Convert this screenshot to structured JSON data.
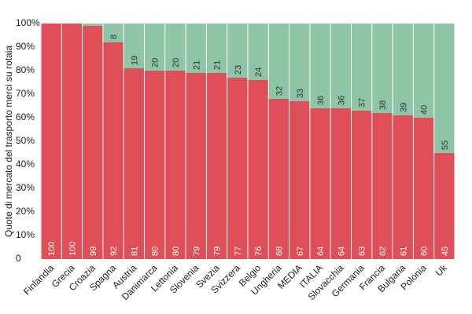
{
  "chart_data": {
    "type": "stacked-bar",
    "y_label": "Quote di mercato del trasporto merci su rotaia",
    "categories": [
      "Finlandia",
      "Grecia",
      "Croazia",
      "Spagna",
      "Austria",
      "Danimarca",
      "Lettonia",
      "Slovenia",
      "Svezia",
      "Svizzera",
      "Belgio",
      "Ungheria",
      "MEDIA",
      "ITALIA",
      "Slovacchia",
      "Germania",
      "Francia",
      "Bulgaria",
      "Polonia",
      "Uk"
    ],
    "series": [
      {
        "color": "#de4f58",
        "values": [
          100,
          100,
          99,
          92,
          81,
          80,
          80,
          79,
          79,
          77,
          76,
          68,
          67,
          64,
          64,
          63,
          62,
          61,
          60,
          45
        ]
      },
      {
        "color": "#8ec5a6",
        "values": [
          0,
          0,
          1,
          8,
          19,
          20,
          20,
          21,
          21,
          23,
          24,
          32,
          33,
          36,
          36,
          37,
          38,
          39,
          40,
          55
        ],
        "value_labels": [
          null,
          null,
          null,
          "8",
          "19",
          "20",
          "20",
          "21",
          "21",
          "23",
          "24",
          "32",
          "33",
          "36",
          "36",
          "37",
          "38",
          "39",
          "40",
          "55"
        ]
      }
    ],
    "ylim": [
      0,
      100
    ],
    "yticks": [
      0,
      {
        "value": 10,
        "label": "10%"
      },
      {
        "value": 20,
        "label": "20%"
      },
      {
        "value": 30,
        "label": "30%"
      },
      {
        "value": 40,
        "label": "40%"
      },
      {
        "value": 50,
        "label": "50%"
      },
      {
        "value": 60,
        "label": "60%"
      },
      {
        "value": 70,
        "label": "70%"
      },
      {
        "value": 80,
        "label": "80%"
      },
      {
        "value": 90,
        "label": "90%"
      },
      {
        "value": 100,
        "label": "100%"
      }
    ]
  }
}
